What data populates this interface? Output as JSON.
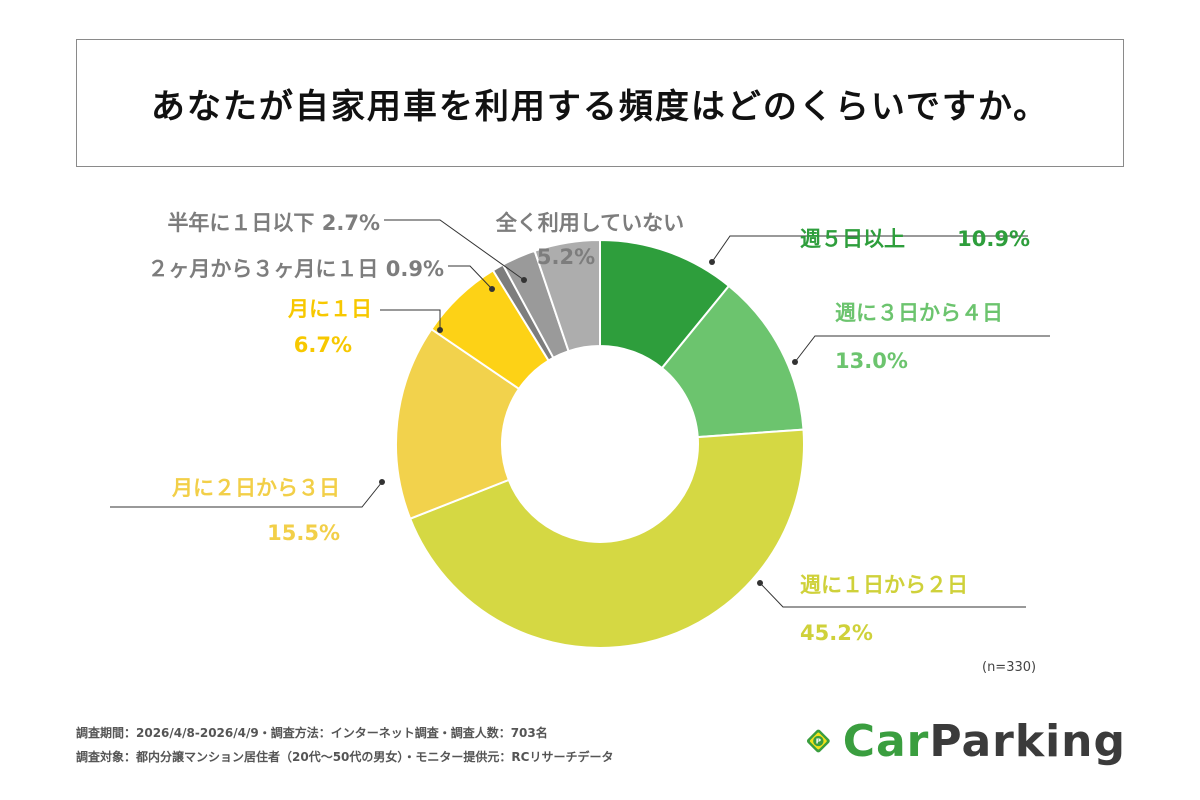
{
  "title": "あなたが自家用車を利用する頻度はどのくらいですか。",
  "chart_data": {
    "type": "pie",
    "variant": "donut",
    "categories": [
      "週５日以上",
      "週に３日から４日",
      "週に１日から２日",
      "月に２日から３日",
      "月に１日",
      "２ヶ月から３ヶ月に１日",
      "半年に１日以下",
      "全く利用していない"
    ],
    "values": [
      10.9,
      13.0,
      45.2,
      15.5,
      6.7,
      0.9,
      2.7,
      5.2
    ],
    "value_labels": [
      "10.9%",
      "13.0%",
      "45.2%",
      "15.5%",
      "6.7%",
      "0.9%",
      "2.7%",
      "5.2%"
    ],
    "colors": [
      "#2e9e3c",
      "#6cc46e",
      "#d5d843",
      "#f2d24c",
      "#fdd216",
      "#7d7d7d",
      "#9a9a9a",
      "#adadad"
    ],
    "start_angle_deg": 0,
    "direction": "clockwise",
    "sample_size": "(n=330)"
  },
  "footer": {
    "line1": "調査期間：2026/4/8-2026/4/9・調査方法：インターネット調査・調査人数：703名",
    "line2": "調査対象：都内分譲マンション居住者（20代〜50代の男女）・モニター提供元：RCリサーチデータ"
  },
  "logo": {
    "icon_name": "parking-p-diamond-icon",
    "text_part1": "Car",
    "text_part2": "Parking",
    "icon_letter": "P"
  }
}
